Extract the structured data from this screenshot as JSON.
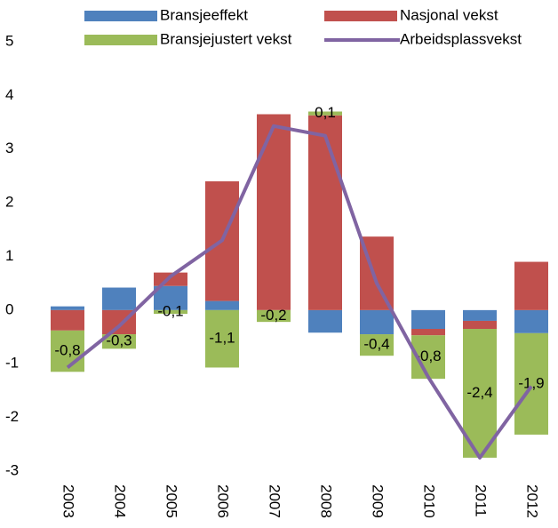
{
  "chart_data": {
    "type": "bar",
    "stacked": true,
    "categories": [
      "2003",
      "2004",
      "2005",
      "2006",
      "2007",
      "2008",
      "2009",
      "2010",
      "2011",
      "2012"
    ],
    "series": [
      {
        "name": "Bransjeeffekt",
        "color": "#4f81bd",
        "values": [
          0.07,
          0.42,
          0.45,
          0.17,
          0,
          -0.42,
          -0.45,
          -0.35,
          -0.2,
          -0.43
        ]
      },
      {
        "name": "Nasjonal vekst",
        "color": "#c0504d",
        "values": [
          -0.38,
          -0.45,
          0.25,
          2.23,
          3.65,
          3.63,
          1.37,
          -0.12,
          -0.15,
          0.9
        ]
      },
      {
        "name": "Bransjejustert vekst",
        "color": "#9bbb59",
        "values": [
          -0.77,
          -0.27,
          -0.07,
          -1.07,
          -0.22,
          0.07,
          -0.4,
          -0.81,
          -2.4,
          -1.89
        ],
        "value_labels": [
          "-0,8",
          "-0,3",
          "-0,1",
          "-1,1",
          "-0,2",
          "0,1",
          "-0,4",
          "-0,8",
          "-2,4",
          "-1,9"
        ]
      },
      {
        "name": "Arbeidsplassvekst",
        "color": "#8064a2",
        "type": "line",
        "values": [
          -1.07,
          -0.3,
          0.63,
          1.3,
          3.43,
          3.25,
          0.5,
          -1.25,
          -2.75,
          -1.42
        ]
      }
    ],
    "ylim": [
      -3,
      5
    ],
    "yticks": [
      -3,
      -2,
      -1,
      0,
      1,
      2,
      3,
      4,
      5
    ],
    "grid": false
  }
}
